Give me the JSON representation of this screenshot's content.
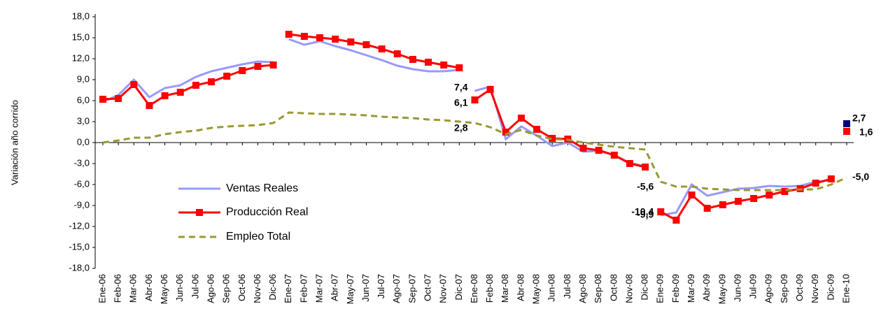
{
  "chart_data": {
    "type": "line",
    "y_label": "Variación año corrido",
    "categories": [
      "Ene-06",
      "Feb-06",
      "Mar-06",
      "Abr-06",
      "May-06",
      "Jun-06",
      "Jul-06",
      "Ago-06",
      "Sep-06",
      "Oct-06",
      "Nov-06",
      "Dic-06",
      "Ene-07",
      "Feb-07",
      "Mar-07",
      "Abr-07",
      "May-07",
      "Jun-07",
      "Jul-07",
      "Ago-07",
      "Sep-07",
      "Oct-07",
      "Nov-07",
      "Dic-07",
      "Ene-08",
      "Feb-08",
      "Mar-08",
      "Abr-08",
      "May-08",
      "Jun-08",
      "Jul-08",
      "Ago-08",
      "Sep-08",
      "Oct-08",
      "Nov-08",
      "Dic-08",
      "Ene-09",
      "Feb-09",
      "Mar-09",
      "Abr-09",
      "May-09",
      "Jun-09",
      "Jul-09",
      "Ago-09",
      "Sep-09",
      "Oct-09",
      "Nov-09",
      "Dic-09",
      "Ene-10"
    ],
    "series": [
      {
        "name": "Ventas Reales",
        "color": "#9999ff",
        "label_color": "#1a1acc",
        "last_marker_color": "#000080",
        "segmented_by_year": true,
        "dashed": false,
        "markers": false,
        "values": [
          5.8,
          6.8,
          9.0,
          6.5,
          7.8,
          8.2,
          9.4,
          10.2,
          10.7,
          11.2,
          11.6,
          11.5,
          14.8,
          14.0,
          14.5,
          13.8,
          13.2,
          12.5,
          11.8,
          11.0,
          10.5,
          10.2,
          10.2,
          10.4,
          7.4,
          8.0,
          0.5,
          2.3,
          1.0,
          -0.5,
          0.0,
          -1.3,
          -1.2,
          -1.8,
          -2.9,
          -3.4,
          -10.4,
          -10.0,
          -6.0,
          -7.6,
          -7.1,
          -6.6,
          -6.5,
          -6.2,
          -6.3,
          -6.2,
          -5.6,
          -5.4,
          2.7
        ],
        "value_labels": [
          null,
          null,
          null,
          null,
          null,
          null,
          null,
          null,
          null,
          null,
          null,
          null,
          null,
          null,
          null,
          null,
          null,
          null,
          null,
          null,
          null,
          null,
          null,
          null,
          "7,4",
          null,
          null,
          null,
          null,
          null,
          null,
          null,
          null,
          null,
          null,
          null,
          "-10,4",
          null,
          null,
          null,
          null,
          null,
          null,
          null,
          null,
          null,
          null,
          null,
          "2,7"
        ]
      },
      {
        "name": "Producción Real",
        "color": "#ff0000",
        "label_color": "#ff0000",
        "last_marker_color": "#ff0000",
        "segmented_by_year": true,
        "dashed": false,
        "markers": true,
        "values": [
          6.2,
          6.3,
          8.3,
          5.3,
          6.7,
          7.2,
          8.2,
          8.7,
          9.5,
          10.3,
          10.9,
          11.1,
          15.5,
          15.2,
          15.0,
          14.8,
          14.4,
          14.0,
          13.4,
          12.7,
          11.9,
          11.5,
          11.1,
          10.7,
          6.1,
          7.6,
          1.5,
          3.5,
          1.9,
          0.6,
          0.5,
          -0.8,
          -1.1,
          -1.8,
          -3.0,
          -3.5,
          -9.9,
          -11.1,
          -7.5,
          -9.4,
          -8.9,
          -8.4,
          -8.0,
          -7.5,
          -7.0,
          -6.6,
          -5.8,
          -5.2,
          1.6
        ],
        "value_labels": [
          null,
          null,
          null,
          null,
          null,
          null,
          null,
          null,
          null,
          null,
          null,
          null,
          null,
          null,
          null,
          null,
          null,
          null,
          null,
          null,
          null,
          null,
          null,
          null,
          "6,1",
          null,
          null,
          null,
          null,
          null,
          null,
          null,
          null,
          null,
          null,
          null,
          "-9,9",
          null,
          null,
          null,
          null,
          null,
          null,
          null,
          null,
          null,
          null,
          null,
          "1,6"
        ]
      },
      {
        "name": "Empleo Total",
        "color": "#999933",
        "label_color": "#339933",
        "last_marker_color": "#999933",
        "segmented_by_year": false,
        "dashed": true,
        "markers": false,
        "values": [
          0.0,
          0.3,
          0.7,
          0.7,
          1.2,
          1.5,
          1.7,
          2.1,
          2.3,
          2.4,
          2.5,
          2.8,
          4.3,
          4.2,
          4.1,
          4.1,
          4.0,
          3.9,
          3.7,
          3.6,
          3.5,
          3.3,
          3.2,
          3.0,
          2.8,
          2.2,
          1.2,
          1.8,
          1.0,
          0.5,
          0.4,
          0.0,
          -0.3,
          -0.6,
          -0.8,
          -1.0,
          -5.6,
          -6.3,
          -6.3,
          -6.6,
          -6.7,
          -6.8,
          -6.8,
          -6.8,
          -6.8,
          -6.7,
          -6.7,
          -6.0,
          -5.0
        ],
        "value_labels": [
          null,
          null,
          null,
          null,
          null,
          null,
          null,
          null,
          null,
          null,
          null,
          null,
          null,
          null,
          null,
          null,
          null,
          null,
          null,
          null,
          null,
          null,
          null,
          null,
          "2,8",
          null,
          null,
          null,
          null,
          null,
          null,
          null,
          null,
          null,
          null,
          null,
          "-5,6",
          null,
          null,
          null,
          null,
          null,
          null,
          null,
          null,
          null,
          null,
          null,
          "-5,0"
        ]
      }
    ],
    "ylim": [
      -18,
      18
    ],
    "yticks": [
      {
        "value": -18,
        "label": "-18,0"
      },
      {
        "value": -15,
        "label": "-15,0"
      },
      {
        "value": -12,
        "label": "-12,0"
      },
      {
        "value": -9,
        "label": "-9,0"
      },
      {
        "value": -6,
        "label": "-6,0"
      },
      {
        "value": -3,
        "label": "-3,0"
      },
      {
        "value": 0,
        "label": "0,0"
      },
      {
        "value": 3,
        "label": "3,0"
      },
      {
        "value": 6,
        "label": "6,0"
      },
      {
        "value": 9,
        "label": "9,0"
      },
      {
        "value": 12,
        "label": "12,0"
      },
      {
        "value": 15,
        "label": "15,0"
      },
      {
        "value": 18,
        "label": "18,0"
      }
    ],
    "grid": false,
    "legend": "center left"
  }
}
